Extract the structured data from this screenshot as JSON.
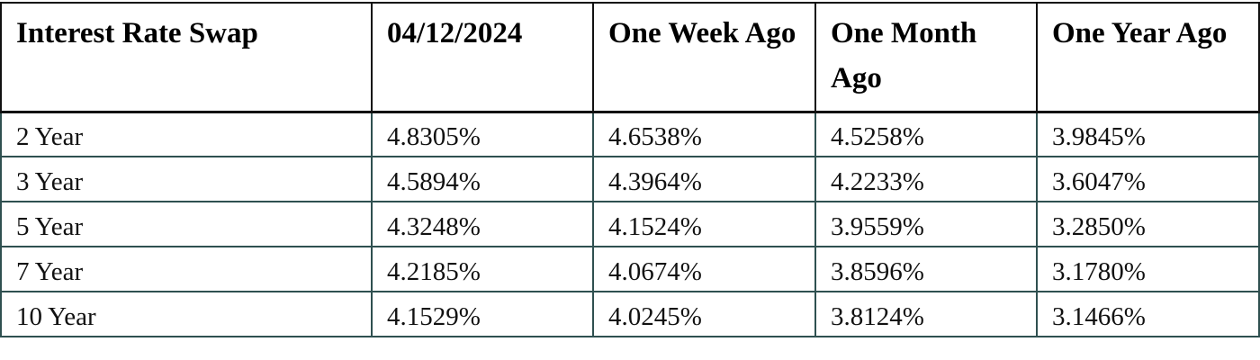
{
  "table": {
    "headers": [
      "Interest Rate Swap",
      "04/12/2024",
      "One Week Ago",
      "One Month Ago",
      "One Year Ago"
    ],
    "rows": [
      [
        "2 Year",
        "4.8305%",
        "4.6538%",
        "4.5258%",
        "3.9845%"
      ],
      [
        "3 Year",
        "4.5894%",
        "4.3964%",
        "4.2233%",
        "3.6047%"
      ],
      [
        "5 Year",
        "4.3248%",
        "4.1524%",
        "3.9559%",
        "3.2850%"
      ],
      [
        "7 Year",
        "4.2185%",
        "4.0674%",
        "3.8596%",
        "3.1780%"
      ],
      [
        "10 Year",
        "4.1529%",
        "4.0245%",
        "3.8124%",
        "3.1466%"
      ]
    ]
  }
}
